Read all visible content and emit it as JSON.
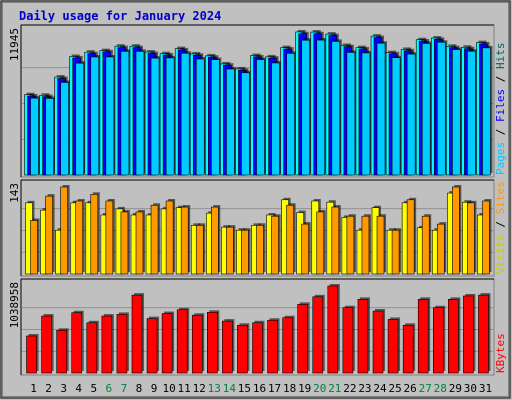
{
  "chart_data": {
    "type": "bar",
    "title": "Daily usage for January 2024",
    "colors": {
      "background": "#C0C0C0",
      "plot_background": "#C0C0C0",
      "title": "#0000CC",
      "hits": "#00FFFF",
      "files": "#0000FF",
      "pages": "#00CCFF",
      "visits": "#FFFF00",
      "sites": "#FF9900",
      "kbytes": "#FF0000",
      "label_hits": "#006666",
      "label_files": "#0000FF",
      "label_pages": "#00CCFF",
      "label_visits": "#CCCC00",
      "label_sites": "#FF9900",
      "label_kbytes": "#FF0000",
      "weekend_day": "#008040",
      "weekday": "#000000"
    },
    "categories": [
      "1",
      "2",
      "3",
      "4",
      "5",
      "6",
      "7",
      "8",
      "9",
      "10",
      "11",
      "12",
      "13",
      "14",
      "15",
      "16",
      "17",
      "18",
      "19",
      "20",
      "21",
      "22",
      "23",
      "24",
      "25",
      "26",
      "27",
      "28",
      "29",
      "30",
      "31"
    ],
    "weekend": [
      6,
      7,
      13,
      14,
      20,
      21,
      27,
      28
    ],
    "panels": [
      {
        "id": "hits",
        "ymax": 11945,
        "ytick_label": "11945",
        "legend": [
          "Hits",
          "Files",
          "Pages"
        ],
        "legend_sep": " / ",
        "series": [
          {
            "name": "Hits",
            "values": [
              6710,
              6660,
              8180,
              9900,
              10260,
              10390,
              10760,
              10760,
              10270,
              10140,
              10560,
              10110,
              9950,
              9280,
              8860,
              9980,
              9870,
              10640,
              11950,
              11940,
              11770,
              10820,
              10640,
              11600,
              10220,
              10490,
              11300,
              11440,
              10750,
              10670,
              11060
            ]
          },
          {
            "name": "Files",
            "values": [
              6600,
              6550,
              8060,
              9780,
              10130,
              10290,
              10640,
              10640,
              10150,
              10020,
              10450,
              10000,
              9840,
              9170,
              8750,
              9870,
              9760,
              10520,
              11800,
              11800,
              11650,
              10720,
              10530,
              11480,
              10120,
              10380,
              11190,
              11330,
              10640,
              10550,
              10950
            ]
          },
          {
            "name": "Pages",
            "values": [
              6420,
              6400,
              7730,
              9340,
              9860,
              9860,
              10330,
              10330,
              9760,
              9780,
              10170,
              9690,
              9640,
              8850,
              8540,
              9640,
              9360,
              10160,
              11260,
              11270,
              11160,
              10240,
              10200,
              11010,
              9800,
              10100,
              10990,
              11090,
              10480,
              10340,
              10620
            ]
          }
        ]
      },
      {
        "id": "visits",
        "ymax": 143,
        "ytick_label": "143",
        "legend": [
          "Sites",
          "Visits"
        ],
        "legend_sep": " / ",
        "series": [
          {
            "name": "Visits",
            "values": [
              117,
              105,
              72,
              117,
              117,
              97,
              107,
              97,
              97,
              107,
              109,
              80,
              100,
              77,
              72,
              80,
              97,
              122,
              101,
              120,
              118,
              93,
              72,
              109,
              72,
              117,
              76,
              72,
              133,
              118,
              97
            ]
          },
          {
            "name": "Sites",
            "values": [
              88,
              128,
              143,
              120,
              131,
              120,
              102,
              102,
              113,
              120,
              110,
              80,
              110,
              77,
              72,
              80,
              95,
              113,
              82,
              102,
              110,
              95,
              95,
              95,
              72,
              122,
              95,
              82,
              143,
              117,
              120
            ]
          }
        ]
      },
      {
        "id": "kbytes",
        "ymax": 1038958,
        "ytick_label": "1038958",
        "legend": [
          "KBytes"
        ],
        "legend_sep": " / ",
        "series": [
          {
            "name": "KBytes",
            "values": [
              442000,
              680000,
              510000,
              720000,
              600000,
              680000,
              700000,
              930000,
              650000,
              710000,
              755000,
              690000,
              725000,
              620000,
              570000,
              600000,
              630000,
              660000,
              820000,
              910000,
              1038958,
              780000,
              880000,
              740000,
              640000,
              570000,
              880000,
              780000,
              880000,
              920000,
              930000
            ]
          }
        ]
      }
    ]
  }
}
